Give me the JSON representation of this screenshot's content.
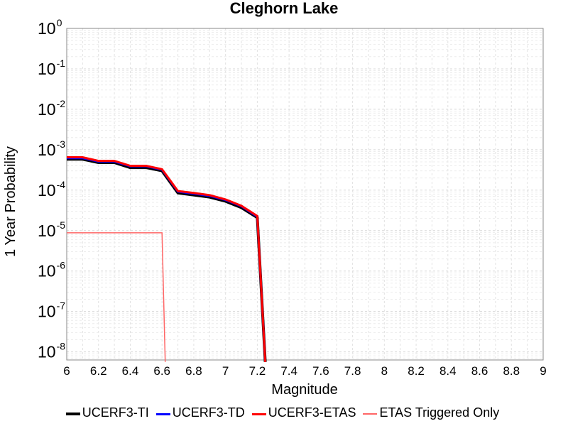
{
  "chart_data": {
    "type": "line",
    "title": "Cleghorn Lake",
    "xlabel": "Magnitude",
    "ylabel": "1 Year Probability",
    "xlim": [
      6,
      9
    ],
    "ylim_log10": [
      -8.2,
      0
    ],
    "y_scale": "log",
    "grid": true,
    "legend_placement": "bottom",
    "x_ticks": [
      "6",
      "6.2",
      "6.4",
      "6.6",
      "6.8",
      "7",
      "7.2",
      "7.4",
      "7.6",
      "7.8",
      "8",
      "8.2",
      "8.4",
      "8.6",
      "8.8",
      "9"
    ],
    "y_ticks": [
      {
        "base": "10",
        "exp": "0",
        "value": 1
      },
      {
        "base": "10",
        "exp": "-1",
        "value": 0.1
      },
      {
        "base": "10",
        "exp": "-2",
        "value": 0.01
      },
      {
        "base": "10",
        "exp": "-3",
        "value": 0.001
      },
      {
        "base": "10",
        "exp": "-4",
        "value": 0.0001
      },
      {
        "base": "10",
        "exp": "-5",
        "value": 1e-05
      },
      {
        "base": "10",
        "exp": "-6",
        "value": 1e-06
      },
      {
        "base": "10",
        "exp": "-7",
        "value": 1e-07
      },
      {
        "base": "10",
        "exp": "-8",
        "value": 1e-08
      }
    ],
    "series": [
      {
        "name": "UCERF3-TI",
        "color": "#000000",
        "x": [
          6.0,
          6.1,
          6.2,
          6.3,
          6.4,
          6.5,
          6.6,
          6.7,
          6.8,
          6.9,
          7.0,
          7.1,
          7.2,
          7.25
        ],
        "y": [
          0.00058,
          0.00058,
          0.00048,
          0.00048,
          0.00036,
          0.00036,
          0.0003,
          8.5e-05,
          7.6e-05,
          6.7e-05,
          5.3e-05,
          3.7e-05,
          2.1e-05,
          1e-09
        ]
      },
      {
        "name": "UCERF3-TD",
        "color": "#0000ff",
        "x": [
          6.0,
          6.1,
          6.2,
          6.3,
          6.4,
          6.5,
          6.6,
          6.7,
          6.8,
          6.9,
          7.0,
          7.1,
          7.2,
          7.25
        ],
        "y": [
          0.00062,
          0.00062,
          0.00051,
          0.00051,
          0.00039,
          0.00039,
          0.00032,
          9.2e-05,
          8.2e-05,
          7.2e-05,
          5.7e-05,
          4e-05,
          2.2e-05,
          1e-09
        ]
      },
      {
        "name": "UCERF3-ETAS",
        "color": "#ff0000",
        "x": [
          6.0,
          6.1,
          6.2,
          6.3,
          6.4,
          6.5,
          6.6,
          6.7,
          6.8,
          6.9,
          7.0,
          7.1,
          7.2,
          7.25
        ],
        "y": [
          0.00065,
          0.00065,
          0.00053,
          0.00053,
          0.0004,
          0.0004,
          0.00033,
          9.5e-05,
          8.5e-05,
          7.5e-05,
          5.9e-05,
          4.1e-05,
          2.3e-05,
          1e-09
        ]
      },
      {
        "name": "ETAS Triggered Only",
        "color": "#ff6666",
        "x": [
          6.0,
          6.6,
          6.62
        ],
        "y": [
          8.8e-06,
          8.8e-06,
          1e-09
        ]
      }
    ]
  }
}
